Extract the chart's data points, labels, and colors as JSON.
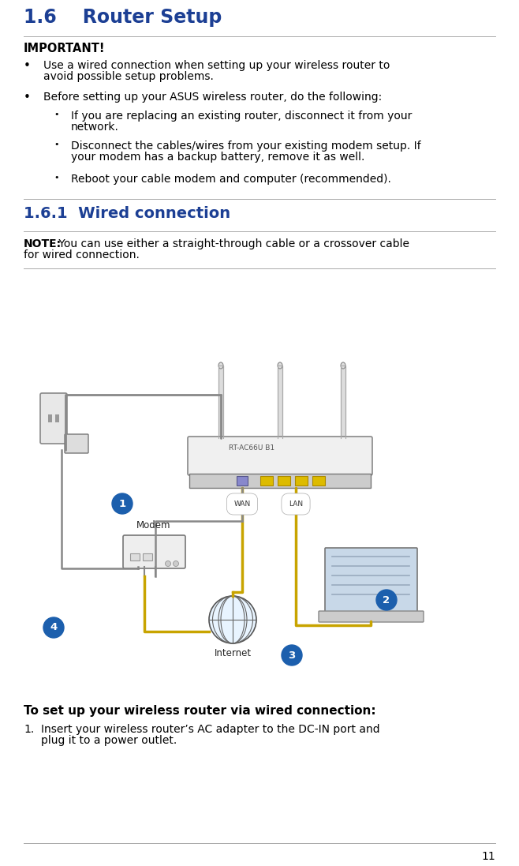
{
  "bg_color": "#ffffff",
  "page_number": "11",
  "title": "1.6    Router Setup",
  "title_color": "#1c3f94",
  "title_fontsize": 17,
  "section_title": "1.6.1  Wired connection",
  "section_title_color": "#1c3f94",
  "section_title_fontsize": 14,
  "important_label": "IMPORTANT!",
  "important_fontsize": 10.5,
  "note_label": "NOTE:",
  "note_text": " You can use either a straight-through cable or a crossover cable\nfor wired connection.",
  "note_fontsize": 10,
  "body_fontsize": 10,
  "bullet1_line1": "Use a wired connection when setting up your wireless router to",
  "bullet1_line2": "avoid possible setup problems.",
  "bullet2": "Before setting up your ASUS wireless router, do the following:",
  "sub_bullet1_line1": "If you are replacing an existing router, disconnect it from your",
  "sub_bullet1_line2": "network.",
  "sub_bullet2_line1": "Disconnect the cables/wires from your existing modem setup. If",
  "sub_bullet2_line2": "your modem has a backup battery, remove it as well.",
  "sub_bullet3": "Reboot your cable modem and computer (recommended).",
  "setup_title": "To set up your wireless router via wired connection:",
  "step1_line1": "Insert your wireless router’s AC adapter to the DC-IN port and",
  "step1_line2": "plug it to a power outlet.",
  "line_color": "#aaaaaa",
  "router_label": "RT-AC66U B1",
  "wan_label": "WAN",
  "lan_label": "LAN",
  "modem_label": "Modem",
  "internet_label": "Internet",
  "circle_color": "#1c5fad",
  "circle_text_color": "#ffffff",
  "cable_color": "#c8a400",
  "cable_color2": "#888888"
}
